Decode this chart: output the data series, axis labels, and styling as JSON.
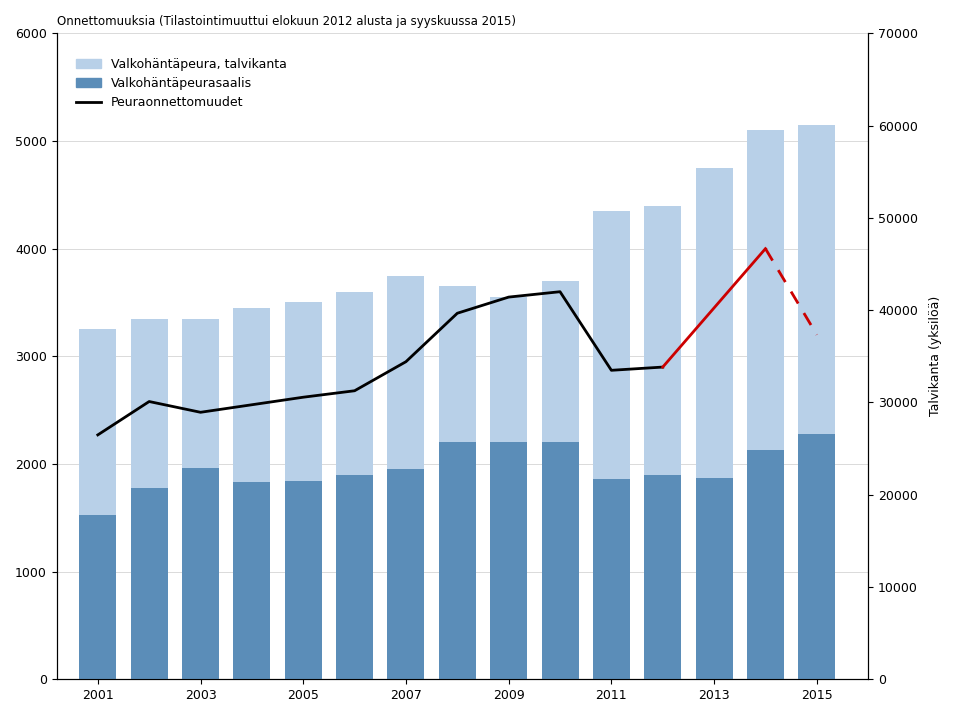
{
  "years": [
    2001,
    2002,
    2003,
    2004,
    2005,
    2006,
    2007,
    2008,
    2009,
    2010,
    2011,
    2012,
    2013,
    2014,
    2015
  ],
  "talvikanta_left": [
    3250,
    3350,
    3350,
    3450,
    3500,
    3600,
    3750,
    3650,
    3550,
    3700,
    4350,
    4400,
    4750,
    5100,
    5150
  ],
  "saalis_left": [
    1530,
    1780,
    1960,
    1830,
    1840,
    1900,
    1950,
    2200,
    2200,
    2200,
    1860,
    1900,
    1870,
    2130,
    2280
  ],
  "onnettomuudet_black": [
    2270,
    2580,
    2480,
    2550,
    2620,
    2680,
    2950,
    3400,
    3550,
    3600,
    2870,
    2900,
    null,
    null,
    null
  ],
  "onnettomuudet_red_solid": [
    null,
    null,
    null,
    null,
    null,
    null,
    null,
    null,
    null,
    null,
    null,
    2900,
    3450,
    4000,
    null
  ],
  "onnettomuudet_red_dashed": [
    null,
    null,
    null,
    null,
    null,
    null,
    null,
    null,
    null,
    null,
    null,
    null,
    null,
    4000,
    3200
  ],
  "title_left": "Onnettomuuksia (Tilastointimuuttui elokuun 2012 alusta ja syyskuussa 2015)",
  "title_right": "Talvikanta (yksilöä)",
  "bar_light_color": "#b8d0e8",
  "bar_dark_color": "#5b8db8",
  "line_black_color": "#000000",
  "line_red_color": "#cc0000",
  "ylim_left": [
    0,
    6000
  ],
  "ylim_right": [
    0,
    70000
  ],
  "yticks_left": [
    0,
    1000,
    2000,
    3000,
    4000,
    5000,
    6000
  ],
  "yticks_right": [
    0,
    10000,
    20000,
    30000,
    40000,
    50000,
    60000,
    70000
  ],
  "xticks": [
    2001,
    2003,
    2005,
    2007,
    2009,
    2011,
    2013,
    2015
  ],
  "xlim": [
    2000.2,
    2016.0
  ],
  "legend_talvikanta": "Valkohäntäpeura, talvikanta",
  "legend_saalis": "Valkohäntäpeurasaalis",
  "legend_onnettomuudet": "Peuraonnettomuudet",
  "bar_width": 0.72
}
